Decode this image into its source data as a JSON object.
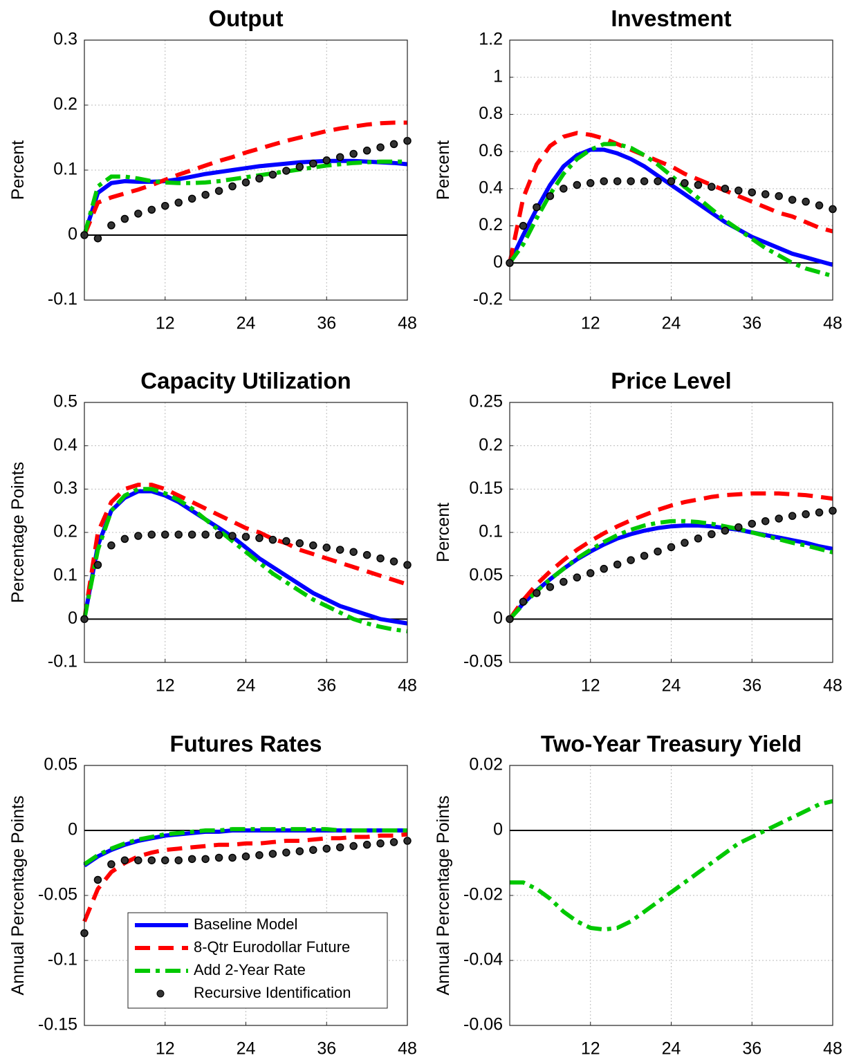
{
  "chart_data": [
    {
      "type": "line",
      "title": "Output",
      "ylabel": "Percent",
      "x": [
        0,
        2,
        4,
        6,
        8,
        10,
        12,
        14,
        16,
        18,
        20,
        22,
        24,
        26,
        28,
        30,
        32,
        34,
        36,
        38,
        40,
        42,
        44,
        46,
        48
      ],
      "xlim": [
        0,
        48
      ],
      "xticks": [
        12,
        24,
        36,
        48
      ],
      "ylim": [
        -0.1,
        0.3
      ],
      "yticks": [
        -0.1,
        0,
        0.1,
        0.2,
        0.3
      ],
      "grid": true,
      "series": [
        {
          "color": "#0000ff",
          "dash": "solid",
          "values": [
            0,
            0.065,
            0.08,
            0.083,
            0.082,
            0.082,
            0.083,
            0.086,
            0.09,
            0.094,
            0.097,
            0.1,
            0.103,
            0.106,
            0.108,
            0.11,
            0.112,
            0.113,
            0.114,
            0.114,
            0.114,
            0.113,
            0.112,
            0.111,
            0.109
          ]
        },
        {
          "color": "#ff0000",
          "dash": "dash",
          "values": [
            0,
            0.05,
            0.058,
            0.064,
            0.07,
            0.077,
            0.085,
            0.093,
            0.1,
            0.107,
            0.114,
            0.12,
            0.127,
            0.133,
            0.139,
            0.145,
            0.15,
            0.155,
            0.16,
            0.164,
            0.167,
            0.17,
            0.172,
            0.173,
            0.173
          ]
        },
        {
          "color": "#00c800",
          "dash": "dashdot",
          "values": [
            0,
            0.075,
            0.09,
            0.09,
            0.087,
            0.083,
            0.081,
            0.08,
            0.08,
            0.081,
            0.083,
            0.086,
            0.089,
            0.092,
            0.095,
            0.098,
            0.101,
            0.104,
            0.107,
            0.109,
            0.111,
            0.112,
            0.113,
            0.113,
            0.113
          ]
        },
        {
          "color": "#000000",
          "dash": "dots",
          "values": [
            0,
            -0.005,
            0.015,
            0.025,
            0.033,
            0.039,
            0.045,
            0.05,
            0.056,
            0.062,
            0.068,
            0.075,
            0.081,
            0.087,
            0.093,
            0.099,
            0.105,
            0.11,
            0.115,
            0.12,
            0.125,
            0.13,
            0.135,
            0.14,
            0.145
          ]
        }
      ]
    },
    {
      "type": "line",
      "title": "Investment",
      "ylabel": "Percent",
      "x": [
        0,
        2,
        4,
        6,
        8,
        10,
        12,
        14,
        16,
        18,
        20,
        22,
        24,
        26,
        28,
        30,
        32,
        34,
        36,
        38,
        40,
        42,
        44,
        46,
        48
      ],
      "xlim": [
        0,
        48
      ],
      "xticks": [
        12,
        24,
        36,
        48
      ],
      "ylim": [
        -0.2,
        1.2
      ],
      "yticks": [
        -0.2,
        0,
        0.2,
        0.4,
        0.6,
        0.8,
        1,
        1.2
      ],
      "grid": true,
      "series": [
        {
          "color": "#0000ff",
          "dash": "solid",
          "values": [
            0,
            0.15,
            0.29,
            0.42,
            0.52,
            0.58,
            0.61,
            0.61,
            0.59,
            0.56,
            0.52,
            0.47,
            0.42,
            0.37,
            0.32,
            0.27,
            0.22,
            0.18,
            0.14,
            0.11,
            0.08,
            0.05,
            0.03,
            0.01,
            -0.01
          ]
        },
        {
          "color": "#ff0000",
          "dash": "dash",
          "values": [
            0,
            0.35,
            0.53,
            0.63,
            0.68,
            0.7,
            0.69,
            0.67,
            0.64,
            0.61,
            0.58,
            0.55,
            0.52,
            0.48,
            0.45,
            0.42,
            0.39,
            0.36,
            0.33,
            0.3,
            0.27,
            0.25,
            0.22,
            0.19,
            0.17
          ]
        },
        {
          "color": "#00c800",
          "dash": "dashdot",
          "values": [
            0,
            0.1,
            0.24,
            0.37,
            0.48,
            0.56,
            0.61,
            0.64,
            0.64,
            0.62,
            0.58,
            0.53,
            0.47,
            0.41,
            0.35,
            0.29,
            0.23,
            0.18,
            0.13,
            0.08,
            0.04,
            0,
            -0.03,
            -0.05,
            -0.07
          ]
        },
        {
          "color": "#000000",
          "dash": "dots",
          "values": [
            0,
            0.2,
            0.3,
            0.36,
            0.4,
            0.42,
            0.43,
            0.44,
            0.44,
            0.44,
            0.44,
            0.44,
            0.44,
            0.43,
            0.42,
            0.41,
            0.4,
            0.39,
            0.38,
            0.37,
            0.36,
            0.34,
            0.33,
            0.31,
            0.29
          ]
        }
      ]
    },
    {
      "type": "line",
      "title": "Capacity Utilization",
      "ylabel": "Percentage Points",
      "x": [
        0,
        2,
        4,
        6,
        8,
        10,
        12,
        14,
        16,
        18,
        20,
        22,
        24,
        26,
        28,
        30,
        32,
        34,
        36,
        38,
        40,
        42,
        44,
        46,
        48
      ],
      "xlim": [
        0,
        48
      ],
      "xticks": [
        12,
        24,
        36,
        48
      ],
      "ylim": [
        -0.1,
        0.5
      ],
      "yticks": [
        -0.1,
        0,
        0.1,
        0.2,
        0.3,
        0.4,
        0.5
      ],
      "grid": true,
      "series": [
        {
          "color": "#0000ff",
          "dash": "solid",
          "values": [
            0,
            0.17,
            0.25,
            0.28,
            0.295,
            0.295,
            0.285,
            0.27,
            0.25,
            0.23,
            0.21,
            0.19,
            0.165,
            0.14,
            0.12,
            0.1,
            0.08,
            0.06,
            0.045,
            0.03,
            0.02,
            0.01,
            0,
            -0.005,
            -0.01
          ]
        },
        {
          "color": "#ff0000",
          "dash": "dash",
          "values": [
            0,
            0.2,
            0.27,
            0.3,
            0.31,
            0.31,
            0.3,
            0.285,
            0.27,
            0.255,
            0.24,
            0.225,
            0.21,
            0.2,
            0.185,
            0.175,
            0.16,
            0.15,
            0.14,
            0.13,
            0.12,
            0.11,
            0.1,
            0.09,
            0.08
          ]
        },
        {
          "color": "#00c800",
          "dash": "dashdot",
          "values": [
            0,
            0.16,
            0.25,
            0.285,
            0.3,
            0.3,
            0.29,
            0.275,
            0.255,
            0.23,
            0.205,
            0.18,
            0.155,
            0.13,
            0.105,
            0.085,
            0.065,
            0.045,
            0.03,
            0.015,
            0,
            -0.01,
            -0.018,
            -0.024,
            -0.028
          ]
        },
        {
          "color": "#000000",
          "dash": "dots",
          "values": [
            0,
            0.125,
            0.17,
            0.185,
            0.192,
            0.195,
            0.195,
            0.195,
            0.195,
            0.195,
            0.194,
            0.192,
            0.19,
            0.187,
            0.183,
            0.18,
            0.175,
            0.17,
            0.165,
            0.16,
            0.155,
            0.148,
            0.14,
            0.133,
            0.125
          ]
        }
      ]
    },
    {
      "type": "line",
      "title": "Price Level",
      "ylabel": "Percent",
      "x": [
        0,
        2,
        4,
        6,
        8,
        10,
        12,
        14,
        16,
        18,
        20,
        22,
        24,
        26,
        28,
        30,
        32,
        34,
        36,
        38,
        40,
        42,
        44,
        46,
        48
      ],
      "xlim": [
        0,
        48
      ],
      "xticks": [
        12,
        24,
        36,
        48
      ],
      "ylim": [
        -0.05,
        0.25
      ],
      "yticks": [
        -0.05,
        0,
        0.05,
        0.1,
        0.15,
        0.2,
        0.25
      ],
      "grid": true,
      "series": [
        {
          "color": "#0000ff",
          "dash": "solid",
          "values": [
            0,
            0.018,
            0.033,
            0.046,
            0.058,
            0.069,
            0.078,
            0.086,
            0.093,
            0.098,
            0.102,
            0.105,
            0.107,
            0.108,
            0.108,
            0.107,
            0.105,
            0.103,
            0.1,
            0.097,
            0.094,
            0.091,
            0.088,
            0.084,
            0.081
          ]
        },
        {
          "color": "#ff0000",
          "dash": "dash",
          "values": [
            0,
            0.022,
            0.04,
            0.055,
            0.068,
            0.08,
            0.09,
            0.099,
            0.107,
            0.114,
            0.12,
            0.126,
            0.131,
            0.135,
            0.138,
            0.141,
            0.143,
            0.144,
            0.145,
            0.145,
            0.145,
            0.144,
            0.143,
            0.141,
            0.139
          ]
        },
        {
          "color": "#00c800",
          "dash": "dashdot",
          "values": [
            0,
            0.017,
            0.032,
            0.046,
            0.058,
            0.07,
            0.08,
            0.089,
            0.097,
            0.103,
            0.108,
            0.111,
            0.113,
            0.113,
            0.112,
            0.11,
            0.107,
            0.104,
            0.1,
            0.096,
            0.092,
            0.088,
            0.085,
            0.081,
            0.077
          ]
        },
        {
          "color": "#000000",
          "dash": "dots",
          "values": [
            0,
            0.02,
            0.03,
            0.037,
            0.043,
            0.048,
            0.053,
            0.058,
            0.063,
            0.068,
            0.073,
            0.078,
            0.083,
            0.088,
            0.093,
            0.098,
            0.102,
            0.106,
            0.11,
            0.113,
            0.116,
            0.119,
            0.121,
            0.123,
            0.125
          ]
        }
      ]
    },
    {
      "type": "line",
      "title": "Futures Rates",
      "ylabel": "Annual Percentage Points",
      "x": [
        0,
        2,
        4,
        6,
        8,
        10,
        12,
        14,
        16,
        18,
        20,
        22,
        24,
        26,
        28,
        30,
        32,
        34,
        36,
        38,
        40,
        42,
        44,
        46,
        48
      ],
      "xlim": [
        0,
        48
      ],
      "xticks": [
        12,
        24,
        36,
        48
      ],
      "ylim": [
        -0.15,
        0.05
      ],
      "yticks": [
        -0.15,
        -0.1,
        -0.05,
        0,
        0.05
      ],
      "grid": true,
      "legend": "lower center",
      "series": [
        {
          "name": "Baseline Model",
          "color": "#0000ff",
          "dash": "solid",
          "values": [
            -0.027,
            -0.02,
            -0.015,
            -0.011,
            -0.008,
            -0.006,
            -0.004,
            -0.003,
            -0.002,
            -0.001,
            -0.001,
            0,
            0,
            0,
            0,
            0,
            0,
            0,
            0,
            0,
            0,
            0,
            0,
            0,
            0
          ]
        },
        {
          "name": "8-Qtr Eurodollar Future",
          "color": "#ff0000",
          "dash": "dash",
          "values": [
            -0.07,
            -0.045,
            -0.032,
            -0.025,
            -0.02,
            -0.017,
            -0.015,
            -0.014,
            -0.013,
            -0.012,
            -0.011,
            -0.011,
            -0.01,
            -0.01,
            -0.009,
            -0.008,
            -0.008,
            -0.007,
            -0.006,
            -0.006,
            -0.005,
            -0.005,
            -0.004,
            -0.004,
            -0.003
          ]
        },
        {
          "name": "Add 2-Year Rate",
          "color": "#00c800",
          "dash": "dashdot",
          "values": [
            -0.026,
            -0.019,
            -0.014,
            -0.01,
            -0.007,
            -0.005,
            -0.003,
            -0.002,
            -0.001,
            0,
            0,
            0.001,
            0.001,
            0.001,
            0.001,
            0.001,
            0.001,
            0.001,
            0.001,
            0,
            0,
            0,
            0,
            0,
            0
          ]
        },
        {
          "name": "Recursive Identification",
          "color": "#000000",
          "dash": "dots",
          "values": [
            -0.079,
            -0.038,
            -0.026,
            -0.023,
            -0.023,
            -0.023,
            -0.023,
            -0.023,
            -0.022,
            -0.022,
            -0.021,
            -0.021,
            -0.02,
            -0.019,
            -0.018,
            -0.017,
            -0.016,
            -0.015,
            -0.014,
            -0.013,
            -0.012,
            -0.011,
            -0.01,
            -0.009,
            -0.008
          ]
        }
      ]
    },
    {
      "type": "line",
      "title": "Two-Year Treasury Yield",
      "ylabel": "Annual Percentage Points",
      "x": [
        0,
        2,
        4,
        6,
        8,
        10,
        12,
        14,
        16,
        18,
        20,
        22,
        24,
        26,
        28,
        30,
        32,
        34,
        36,
        38,
        40,
        42,
        44,
        46,
        48
      ],
      "xlim": [
        0,
        48
      ],
      "xticks": [
        12,
        24,
        36,
        48
      ],
      "ylim": [
        -0.06,
        0.02
      ],
      "yticks": [
        -0.06,
        -0.04,
        -0.02,
        0,
        0.02
      ],
      "grid": true,
      "series": [
        {
          "color": "#00c800",
          "dash": "dashdot",
          "values": [
            -0.016,
            -0.016,
            -0.018,
            -0.021,
            -0.025,
            -0.028,
            -0.03,
            -0.0305,
            -0.03,
            -0.028,
            -0.025,
            -0.022,
            -0.019,
            -0.016,
            -0.013,
            -0.01,
            -0.007,
            -0.004,
            -0.002,
            0,
            0.002,
            0.004,
            0.006,
            0.008,
            0.009
          ]
        }
      ]
    }
  ]
}
